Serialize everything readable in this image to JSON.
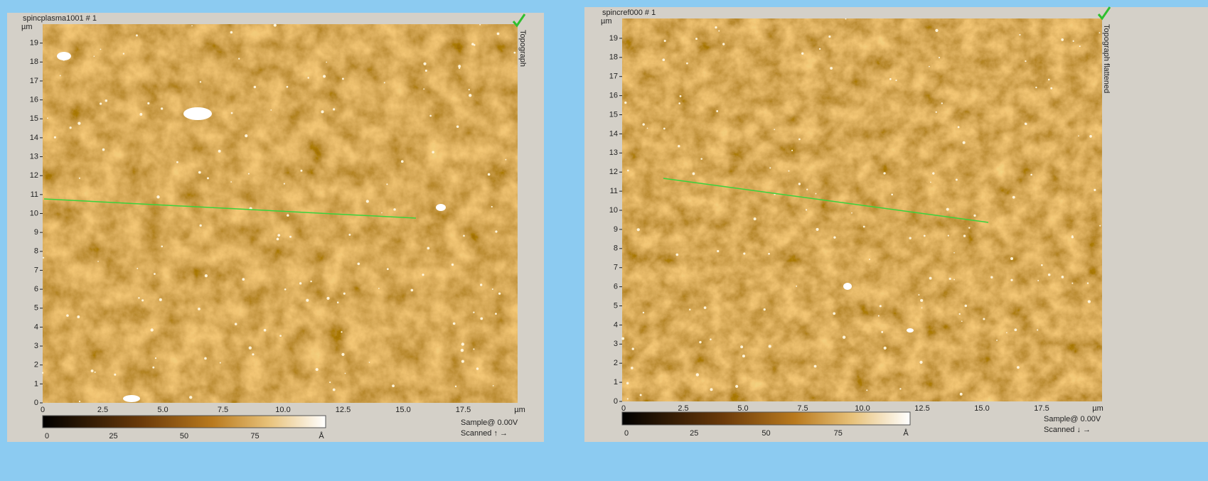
{
  "panels": [
    {
      "title": "spincplasma1001 # 1",
      "y_unit": "µm",
      "yticks": [
        "0",
        "1",
        "2",
        "3",
        "4",
        "5",
        "6",
        "7",
        "8",
        "9",
        "10",
        "11",
        "12",
        "13",
        "14",
        "15",
        "16",
        "17",
        "18",
        "19"
      ],
      "xticks": [
        "0",
        "2.5",
        "5.0",
        "7.5",
        "10.0",
        "12.5",
        "15.0",
        "17.5"
      ],
      "x_unit": "µm",
      "colorbar_ticks": [
        "0",
        "25",
        "50",
        "75"
      ],
      "colorbar_unit": "Å",
      "channel": "Topograph",
      "bias": "Sample@ 0.00V",
      "scan": "Scanned ↑ →"
    },
    {
      "title": "spincref000 # 1",
      "y_unit": "µm",
      "yticks": [
        "0",
        "1",
        "2",
        "3",
        "4",
        "5",
        "6",
        "7",
        "8",
        "9",
        "10",
        "11",
        "12",
        "13",
        "14",
        "15",
        "16",
        "17",
        "18",
        "19"
      ],
      "xticks": [
        "0",
        "2.5",
        "5.0",
        "7.5",
        "10.0",
        "12.5",
        "15.0",
        "17.5"
      ],
      "x_unit": "µm",
      "colorbar_ticks": [
        "0",
        "25",
        "50",
        "75"
      ],
      "colorbar_unit": "Å",
      "channel": "Topograph flattened",
      "bias": "Sample@ 0.00V",
      "scan": "Scanned ↓ →"
    }
  ]
}
